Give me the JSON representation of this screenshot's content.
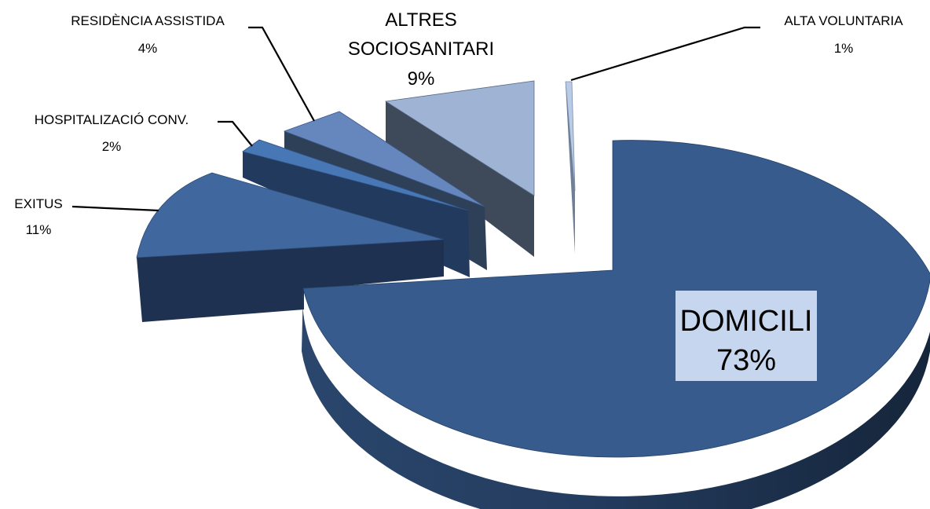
{
  "chart_data": {
    "type": "pie",
    "style": "3d-exploded",
    "slices": [
      {
        "label": "DOMICILI",
        "value": 73,
        "pct_label": "73%",
        "color": "#365B8C"
      },
      {
        "label": "EXITUS",
        "value": 11,
        "pct_label": "11%",
        "color": "#41689E"
      },
      {
        "label": "HOSPITALIZACIÓ CONV.",
        "value": 2,
        "pct_label": "2%",
        "color": "#4877B5"
      },
      {
        "label": "RESIDÈNCIA ASSISTIDA",
        "value": 4,
        "pct_label": "4%",
        "color": "#6686BE"
      },
      {
        "label": "ALTRES SOCIOSANITARI",
        "label_lines": [
          "ALTRES",
          "SOCIOSANITARI"
        ],
        "value": 9,
        "pct_label": "9%",
        "color": "#9FB3D4"
      },
      {
        "label": "ALTA VOLUNTARIA",
        "value": 1,
        "pct_label": "1%",
        "color": "#B9CBE6"
      }
    ],
    "legend": "none",
    "highlight_box_color": "#C6D6EE"
  }
}
